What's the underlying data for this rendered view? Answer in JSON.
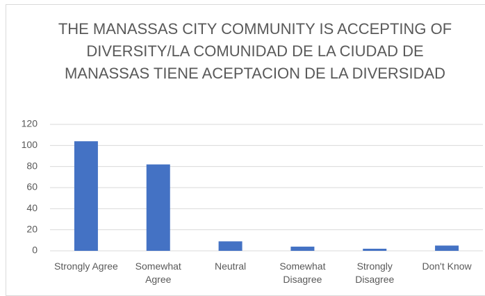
{
  "chart_data": {
    "type": "bar",
    "title": "THE MANASSAS CITY COMMUNITY IS ACCEPTING OF DIVERSITY/LA COMUNIDAD DE LA CIUDAD DE MANASSAS TIENE ACEPTACION DE LA DIVERSIDAD",
    "categories": [
      "Strongly Agree",
      "Somewhat Agree",
      "Neutral",
      "Somewhat Disagree",
      "Strongly Disagree",
      "Don't Know"
    ],
    "values": [
      104,
      82,
      9,
      4,
      2,
      5
    ],
    "color": "#4472c4",
    "ylim": [
      0,
      120
    ],
    "yticks": [
      0,
      20,
      40,
      60,
      80,
      100,
      120
    ],
    "grid": true
  }
}
